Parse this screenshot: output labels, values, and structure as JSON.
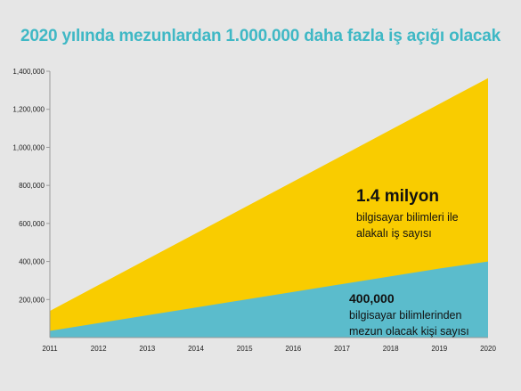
{
  "title": "2020 yılında mezunlardan 1.000.000 daha fazla iş açığı olacak",
  "annotations": {
    "jobs_value": "1.4 milyon",
    "jobs_line1": "bilgisayar bilimleri ile",
    "jobs_line2": "alakalı iş sayısı",
    "grads_value": "400,000",
    "grads_line1": "bilgisayar bilimlerinden",
    "grads_line2": "mezun olacak kişi sayısı"
  },
  "chart_data": {
    "type": "area",
    "x": [
      2011,
      2012,
      2013,
      2014,
      2015,
      2016,
      2017,
      2018,
      2019,
      2020
    ],
    "series": [
      {
        "values": [
          140000,
          276000,
          412000,
          548000,
          684000,
          820000,
          956000,
          1092000,
          1228000,
          1364000
        ],
        "color": "#f9cc00"
      },
      {
        "values": [
          35000,
          76000,
          117000,
          158000,
          199000,
          240000,
          281000,
          322000,
          363000,
          400000
        ],
        "color": "#5bbccc"
      }
    ],
    "yticks": [
      "200,000",
      "400,000",
      "600,000",
      "800,000",
      "1,000,000",
      "1,200,000",
      "1,400,000"
    ],
    "ylim": [
      0,
      1400000
    ],
    "xlim": [
      2011,
      2020
    ],
    "grid": false,
    "legend": "none"
  }
}
